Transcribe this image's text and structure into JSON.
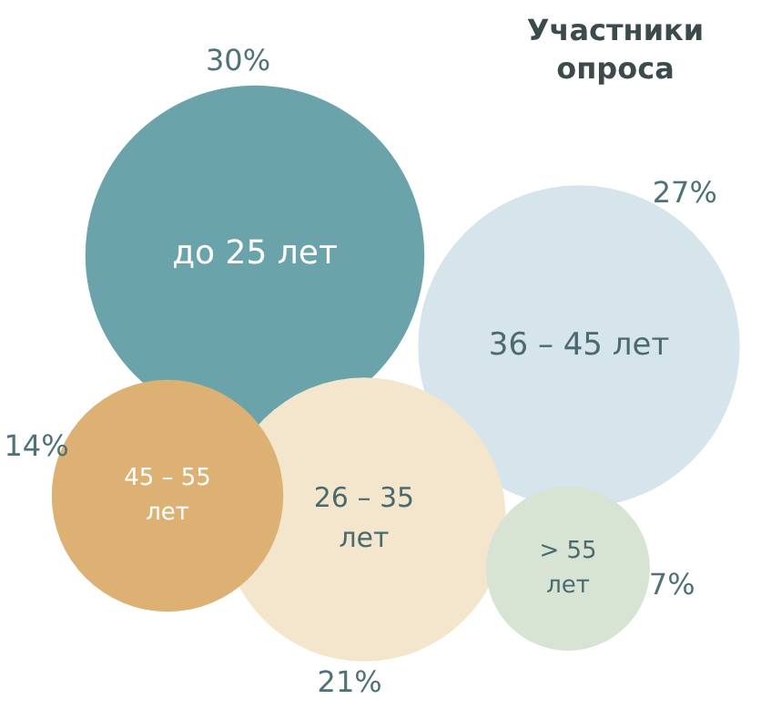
{
  "chart_data": {
    "type": "other",
    "title": "Участники опроса",
    "categories": [
      "до 25 лет",
      "36 – 45 лет",
      "26 – 35 лет",
      "45 – 55 лет",
      "> 55 лет"
    ],
    "values": [
      30,
      27,
      21,
      14,
      7
    ],
    "value_labels": [
      "30%",
      "27%",
      "21%",
      "14%",
      "7%"
    ],
    "colors": [
      "#6ba3ab",
      "#d6e4eb",
      "#f3e6cc",
      "#ddb173",
      "#d7e4d3"
    ]
  }
}
